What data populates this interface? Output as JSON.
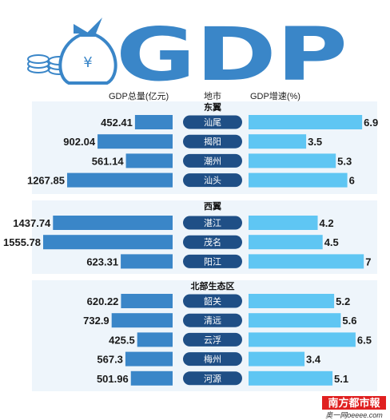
{
  "title": "GDP",
  "headers": {
    "gdp": "GDP总量(亿元)",
    "city": "地市",
    "growth": "GDP增速(%)"
  },
  "chart_data": {
    "type": "bar",
    "series": [
      {
        "name": "GDP总量(亿元)",
        "direction": "left"
      },
      {
        "name": "GDP增速(%)",
        "direction": "right"
      }
    ],
    "groups": [
      {
        "region": "东翼",
        "cities": [
          {
            "city": "汕尾",
            "gdp": 452.41,
            "gdp_text": "452.41",
            "growth": 6.9,
            "growth_text": "6.9"
          },
          {
            "city": "揭阳",
            "gdp": 902.04,
            "gdp_text": "902.04",
            "growth": 3.5,
            "growth_text": "3.5"
          },
          {
            "city": "潮州",
            "gdp": 561.14,
            "gdp_text": "561.14",
            "growth": 5.3,
            "growth_text": "5.3"
          },
          {
            "city": "汕头",
            "gdp": 1267.85,
            "gdp_text": "1267.85",
            "growth": 6,
            "growth_text": "6"
          }
        ]
      },
      {
        "region": "西翼",
        "cities": [
          {
            "city": "湛江",
            "gdp": 1437.74,
            "gdp_text": "1437.74",
            "growth": 4.2,
            "growth_text": "4.2"
          },
          {
            "city": "茂名",
            "gdp": 1555.78,
            "gdp_text": "1555.78",
            "growth": 4.5,
            "growth_text": "4.5"
          },
          {
            "city": "阳江",
            "gdp": 623.31,
            "gdp_text": "623.31",
            "growth": 7,
            "growth_text": "7"
          }
        ]
      },
      {
        "region": "北部生态区",
        "cities": [
          {
            "city": "韶关",
            "gdp": 620.22,
            "gdp_text": "620.22",
            "growth": 5.2,
            "growth_text": "5.2"
          },
          {
            "city": "清远",
            "gdp": 732.9,
            "gdp_text": "732.9",
            "growth": 5.6,
            "growth_text": "5.6"
          },
          {
            "city": "云浮",
            "gdp": 425.5,
            "gdp_text": "425.5",
            "growth": 6.5,
            "growth_text": "6.5"
          },
          {
            "city": "梅州",
            "gdp": 567.3,
            "gdp_text": "567.3",
            "growth": 3.4,
            "growth_text": "3.4"
          },
          {
            "city": "河源",
            "gdp": 501.96,
            "gdp_text": "501.96",
            "growth": 5.1,
            "growth_text": "5.1"
          }
        ]
      }
    ]
  },
  "colors": {
    "gdp_bar": "#3a86c8",
    "growth_bar": "#5fc6f3",
    "city_pill": "#1f4f86",
    "group_bg": "#eef5fb",
    "title": "#3a86c8",
    "logo_bg": "#e02020"
  },
  "icons": [
    "money-bag-icon",
    "coin-stack-icon"
  ],
  "footer": {
    "logo": "南方都市報",
    "url": "奥一网oeeee.com"
  }
}
